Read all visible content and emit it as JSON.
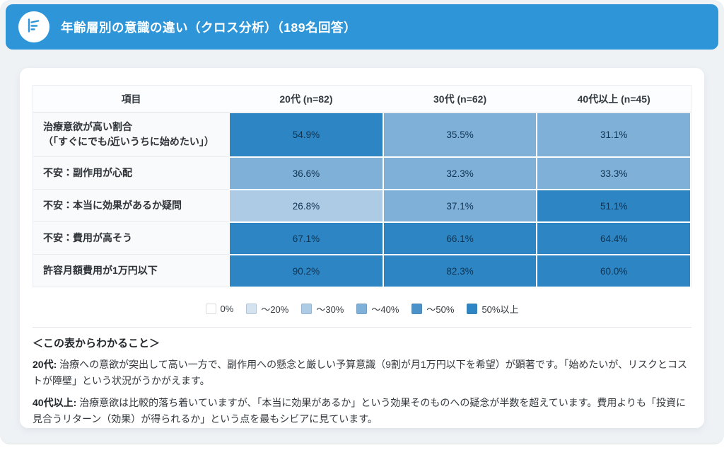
{
  "header": {
    "title": "年齢層別の意識の違い（クロス分析）（189名回答）",
    "icon": "bar-chart-icon",
    "bg_color": "#2e96d8"
  },
  "chart_data": {
    "type": "heatmap",
    "title": "年齢層別の意識の違い（クロス分析）",
    "respondents_total": "189名回答",
    "corner_header": "項目",
    "columns": [
      "20代 (n=82)",
      "30代 (n=62)",
      "40代以上 (n=45)"
    ],
    "rows": [
      {
        "label": "治療意欲が高い割合\n（「すぐにでも/近いうちに始めたい」）",
        "values": [
          54.9,
          35.5,
          31.1
        ]
      },
      {
        "label": "不安：副作用が心配",
        "values": [
          36.6,
          32.3,
          33.3
        ]
      },
      {
        "label": "不安：本当に効果があるか疑問",
        "values": [
          26.8,
          37.1,
          51.1
        ]
      },
      {
        "label": "不安：費用が高そう",
        "values": [
          67.1,
          66.1,
          64.4
        ]
      },
      {
        "label": "許容月額費用が1万円以下",
        "values": [
          90.2,
          82.3,
          60.0
        ]
      }
    ],
    "value_unit": "%",
    "legend_position": "bottom-center",
    "buckets": [
      {
        "label": "0%",
        "min": 0,
        "color": "#ffffff"
      },
      {
        "label": "～20%",
        "min": 0,
        "color": "#d5e2ef"
      },
      {
        "label": "～30%",
        "min": 20,
        "color": "#aecbe5"
      },
      {
        "label": "～40%",
        "min": 30,
        "color": "#7fb0d8"
      },
      {
        "label": "～50%",
        "min": 40,
        "color": "#4a92c8"
      },
      {
        "label": "50%以上",
        "min": 50,
        "color": "#2d86c3"
      }
    ]
  },
  "insights": {
    "heading": "＜この表からわかること＞",
    "items": [
      {
        "lead": "20代:",
        "text": "治療への意欲が突出して高い一方で、副作用への懸念と厳しい予算意識（9割が月1万円以下を希望）が顕著です。「始めたいが、リスクとコストが障壁」という状況がうかがえます。"
      },
      {
        "lead": "40代以上:",
        "text": "治療意欲は比較的落ち着いていますが、「本当に効果があるか」という効果そのものへの疑念が半数を超えています。費用よりも「投資に見合うリターン（効果）が得られるか」という点を最もシビアに見ています。"
      }
    ]
  }
}
